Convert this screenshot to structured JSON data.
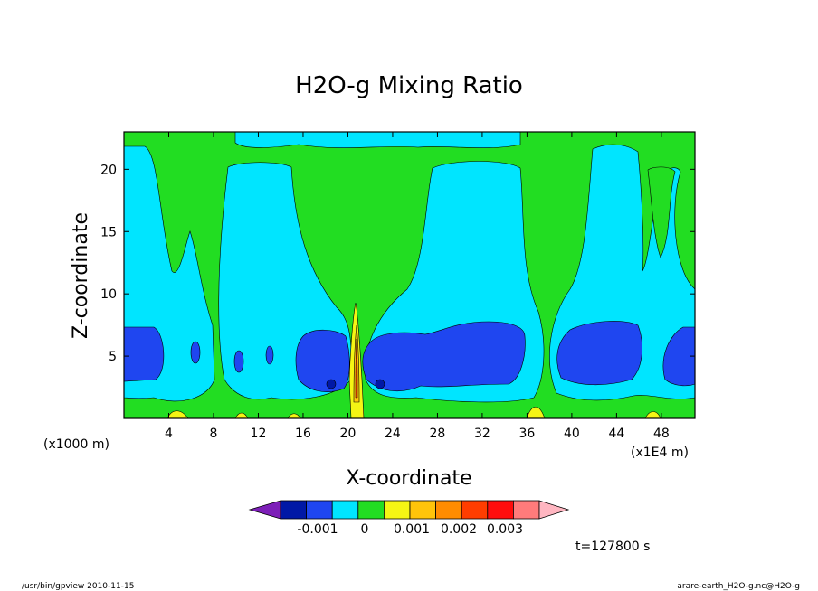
{
  "chart_data": {
    "type": "heatmap",
    "title": "H2O-g Mixing Ratio",
    "xlabel": "X-coordinate",
    "ylabel": "Z-coordinate",
    "x_ticks": [
      "4",
      "8",
      "12",
      "16",
      "20",
      "24",
      "28",
      "32",
      "36",
      "40",
      "44",
      "48"
    ],
    "y_ticks": [
      "5",
      "10",
      "15",
      "20"
    ],
    "x_unit_left": "(x1000 m)",
    "x_unit_right": "(x1E4 m)",
    "xlim": [
      0,
      51
    ],
    "ylim": [
      0,
      23
    ],
    "colorbar": {
      "colors": [
        "#7d1fb8",
        "#0018a6",
        "#1f46f0",
        "#00e5ff",
        "#22dd22",
        "#f5f514",
        "#ffc40a",
        "#ff8c00",
        "#ff3d00",
        "#ff0d0d",
        "#ff7b7b",
        "#ffb6c1"
      ],
      "labels": [
        "-0.001",
        "0",
        "0.001",
        "0.002",
        "0.003"
      ]
    },
    "time_label": "t=127800 s",
    "contour_fields": {
      "green": "#22dd22",
      "cyan": "#00e5ff",
      "blue": "#1f46f0",
      "yellow": "#f5f514",
      "dark_blue": "#0018a6"
    }
  },
  "footer": {
    "left": "/usr/bin/gpview   2010-11-15",
    "right": "arare-earth_H2O-g.nc@H2O-g"
  }
}
